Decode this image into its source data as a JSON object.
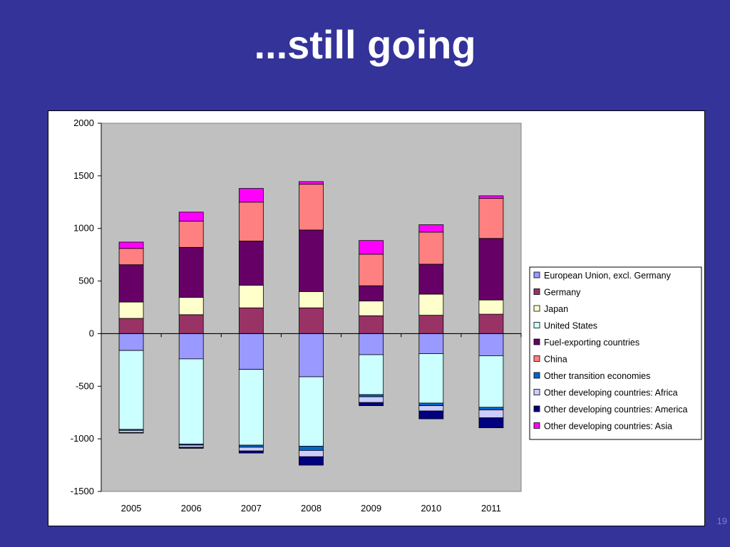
{
  "slide": {
    "title": "...still going",
    "page_number": "19"
  },
  "colors": {
    "background": "#333399",
    "plot_area": "#c0c0c0"
  },
  "chart_data": {
    "type": "bar",
    "stacked": true,
    "title": "",
    "xlabel": "",
    "ylabel": "",
    "ylim": [
      -1500,
      2000
    ],
    "yticks": [
      2000,
      1500,
      1000,
      500,
      0,
      -500,
      -1000,
      -1500
    ],
    "grid": false,
    "legend_position": "right",
    "categories": [
      "2005",
      "2006",
      "2007",
      "2008",
      "2009",
      "2010",
      "2011"
    ],
    "series": [
      {
        "name": "European Union, excl. Germany",
        "color": "#9999ff",
        "values": [
          -160,
          -240,
          -340,
          -410,
          -200,
          -190,
          -210
        ]
      },
      {
        "name": "Germany",
        "color": "#993366",
        "values": [
          145,
          180,
          245,
          245,
          170,
          175,
          185
        ]
      },
      {
        "name": "Japan",
        "color": "#ffffcc",
        "values": [
          155,
          165,
          215,
          155,
          140,
          200,
          135
        ]
      },
      {
        "name": "United States",
        "color": "#ccffff",
        "values": [
          -750,
          -810,
          -720,
          -660,
          -380,
          -470,
          -490
        ]
      },
      {
        "name": "Fuel-exporting countries",
        "color": "#660066",
        "values": [
          355,
          475,
          420,
          585,
          145,
          285,
          585
        ]
      },
      {
        "name": "China",
        "color": "#ff8080",
        "values": [
          155,
          250,
          370,
          435,
          300,
          305,
          380
        ]
      },
      {
        "name": "Other transition economies",
        "color": "#0066cc",
        "values": [
          -10,
          -10,
          -20,
          -40,
          -20,
          -25,
          -25
        ]
      },
      {
        "name": "Other developing countries: Africa",
        "color": "#ccccff",
        "values": [
          -20,
          -20,
          -35,
          -60,
          -55,
          -50,
          -75
        ]
      },
      {
        "name": "Other developing countries: America",
        "color": "#000080",
        "values": [
          -5,
          -10,
          -20,
          -80,
          -30,
          -75,
          -95
        ]
      },
      {
        "name": "Other developing countries: Asia",
        "color": "#ff00ff",
        "values": [
          60,
          85,
          130,
          25,
          130,
          70,
          25
        ]
      }
    ]
  }
}
